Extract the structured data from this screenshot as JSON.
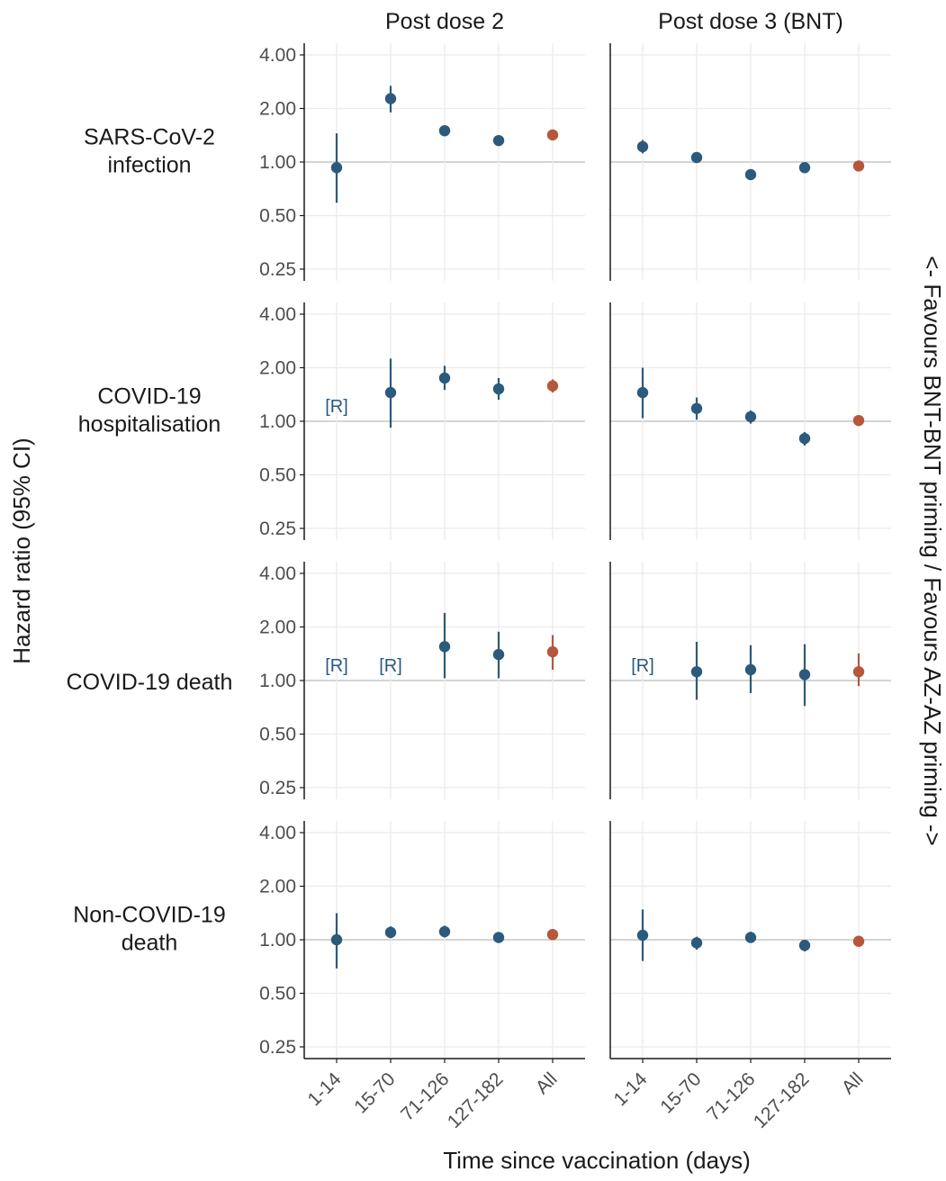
{
  "chart_data": {
    "type": "scatter",
    "xlabel": "Time since vaccination (days)",
    "ylabel": "Hazard ratio (95% CI)",
    "right_label": "<- Favours BNT-BNT priming / Favours AZ-AZ priming ->",
    "y_scale": "log",
    "ylim": [
      0.25,
      4.0
    ],
    "yticks": [
      "0.25",
      "0.50",
      "1.00",
      "2.00",
      "4.00"
    ],
    "ytick_values": [
      0.25,
      0.5,
      1.0,
      2.0,
      4.0
    ],
    "reference_line": 1.0,
    "categories": [
      "1-14",
      "15-70",
      "71-126",
      "127-182",
      "All"
    ],
    "columns": [
      "Post dose 2",
      "Post dose 3 (BNT)"
    ],
    "rows": [
      "SARS-CoV-2\ninfection",
      "COVID-19\nhospitalisation",
      "COVID-19 death",
      "Non-COVID-19\ndeath"
    ],
    "reference_text": "[R]",
    "colors": {
      "period": "#2c5a7d",
      "overall": "#b5573a",
      "refline": "#c6c6c6",
      "grid": "#ebebeb",
      "axis": "#1a1a1a"
    },
    "panels": [
      {
        "row": 0,
        "col": 0,
        "points": [
          {
            "x": "1-14",
            "hr": 0.93,
            "lo": 0.59,
            "hi": 1.45
          },
          {
            "x": "15-70",
            "hr": 2.27,
            "lo": 1.9,
            "hi": 2.68
          },
          {
            "x": "71-126",
            "hr": 1.5,
            "lo": 1.44,
            "hi": 1.56
          },
          {
            "x": "127-182",
            "hr": 1.32,
            "lo": 1.27,
            "hi": 1.37
          },
          {
            "x": "All",
            "hr": 1.42,
            "lo": 1.38,
            "hi": 1.46
          }
        ]
      },
      {
        "row": 0,
        "col": 1,
        "points": [
          {
            "x": "1-14",
            "hr": 1.22,
            "lo": 1.12,
            "hi": 1.33
          },
          {
            "x": "15-70",
            "hr": 1.06,
            "lo": 1.02,
            "hi": 1.1
          },
          {
            "x": "71-126",
            "hr": 0.85,
            "lo": 0.82,
            "hi": 0.88
          },
          {
            "x": "127-182",
            "hr": 0.93,
            "lo": 0.9,
            "hi": 0.96
          },
          {
            "x": "All",
            "hr": 0.95,
            "lo": 0.93,
            "hi": 0.97
          }
        ]
      },
      {
        "row": 1,
        "col": 0,
        "points": [
          {
            "x": "1-14",
            "ref": true
          },
          {
            "x": "15-70",
            "hr": 1.45,
            "lo": 0.92,
            "hi": 2.25
          },
          {
            "x": "71-126",
            "hr": 1.75,
            "lo": 1.5,
            "hi": 2.05
          },
          {
            "x": "127-182",
            "hr": 1.52,
            "lo": 1.32,
            "hi": 1.75
          },
          {
            "x": "All",
            "hr": 1.58,
            "lo": 1.45,
            "hi": 1.72
          }
        ]
      },
      {
        "row": 1,
        "col": 1,
        "points": [
          {
            "x": "1-14",
            "hr": 1.45,
            "lo": 1.04,
            "hi": 2.0
          },
          {
            "x": "15-70",
            "hr": 1.18,
            "lo": 1.02,
            "hi": 1.36
          },
          {
            "x": "71-126",
            "hr": 1.06,
            "lo": 0.97,
            "hi": 1.15
          },
          {
            "x": "127-182",
            "hr": 0.8,
            "lo": 0.73,
            "hi": 0.87
          },
          {
            "x": "All",
            "hr": 1.01,
            "lo": 0.97,
            "hi": 1.05
          }
        ]
      },
      {
        "row": 2,
        "col": 0,
        "points": [
          {
            "x": "1-14",
            "ref": true
          },
          {
            "x": "15-70",
            "ref": true
          },
          {
            "x": "71-126",
            "hr": 1.55,
            "lo": 1.03,
            "hi": 2.4
          },
          {
            "x": "127-182",
            "hr": 1.4,
            "lo": 1.03,
            "hi": 1.88
          },
          {
            "x": "All",
            "hr": 1.45,
            "lo": 1.15,
            "hi": 1.8
          }
        ]
      },
      {
        "row": 2,
        "col": 1,
        "points": [
          {
            "x": "1-14",
            "ref": true
          },
          {
            "x": "15-70",
            "hr": 1.12,
            "lo": 0.78,
            "hi": 1.65
          },
          {
            "x": "71-126",
            "hr": 1.15,
            "lo": 0.85,
            "hi": 1.58
          },
          {
            "x": "127-182",
            "hr": 1.08,
            "lo": 0.72,
            "hi": 1.6
          },
          {
            "x": "All",
            "hr": 1.12,
            "lo": 0.93,
            "hi": 1.42
          }
        ]
      },
      {
        "row": 3,
        "col": 0,
        "points": [
          {
            "x": "1-14",
            "hr": 1.0,
            "lo": 0.69,
            "hi": 1.41
          },
          {
            "x": "15-70",
            "hr": 1.1,
            "lo": 1.02,
            "hi": 1.19
          },
          {
            "x": "71-126",
            "hr": 1.11,
            "lo": 1.03,
            "hi": 1.2
          },
          {
            "x": "127-182",
            "hr": 1.03,
            "lo": 0.97,
            "hi": 1.1
          },
          {
            "x": "All",
            "hr": 1.07,
            "lo": 1.04,
            "hi": 1.1
          }
        ]
      },
      {
        "row": 3,
        "col": 1,
        "points": [
          {
            "x": "1-14",
            "hr": 1.06,
            "lo": 0.76,
            "hi": 1.48
          },
          {
            "x": "15-70",
            "hr": 0.96,
            "lo": 0.88,
            "hi": 1.04
          },
          {
            "x": "71-126",
            "hr": 1.03,
            "lo": 0.96,
            "hi": 1.11
          },
          {
            "x": "127-182",
            "hr": 0.93,
            "lo": 0.86,
            "hi": 1.0
          },
          {
            "x": "All",
            "hr": 0.98,
            "lo": 0.96,
            "hi": 1.0
          }
        ]
      }
    ]
  }
}
